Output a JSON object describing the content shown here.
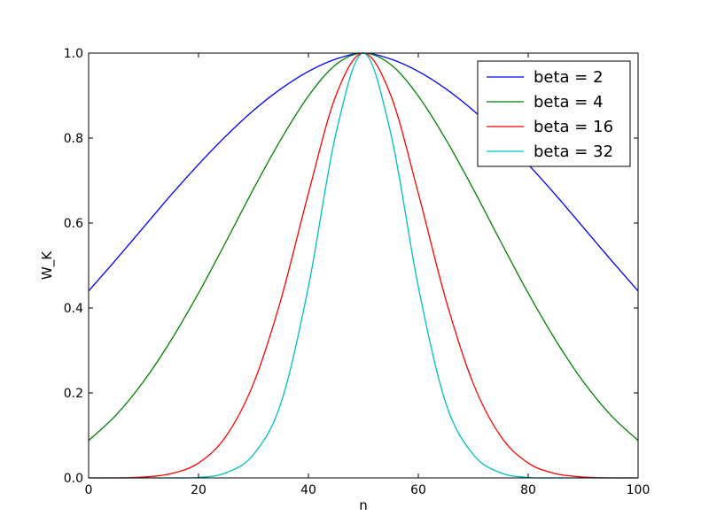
{
  "chart_data": {
    "type": "line",
    "title": "",
    "xlabel": "n",
    "ylabel": "W_K",
    "xlim": [
      0,
      100
    ],
    "ylim": [
      0.0,
      1.0
    ],
    "xticks": [
      0,
      20,
      40,
      60,
      80,
      100
    ],
    "xtick_labels": [
      "0",
      "20",
      "40",
      "60",
      "80",
      "100"
    ],
    "yticks": [
      0.0,
      0.2,
      0.4,
      0.6,
      0.8,
      1.0
    ],
    "ytick_labels": [
      "0.0",
      "0.2",
      "0.4",
      "0.6",
      "0.8",
      "1.0"
    ],
    "grid": false,
    "legend": {
      "placement": "top-right"
    },
    "x": [
      0,
      5,
      10,
      15,
      20,
      25,
      30,
      35,
      40,
      45,
      50,
      55,
      60,
      65,
      70,
      75,
      80,
      85,
      90,
      95,
      100
    ],
    "series": [
      {
        "name": "beta = 2",
        "color": "#0000ff",
        "values": [
          0.44,
          0.514,
          0.59,
          0.666,
          0.738,
          0.805,
          0.865,
          0.916,
          0.957,
          0.986,
          1.0,
          0.986,
          0.957,
          0.916,
          0.865,
          0.805,
          0.738,
          0.666,
          0.59,
          0.514,
          0.44
        ]
      },
      {
        "name": "beta = 4",
        "color": "#008000",
        "values": [
          0.088,
          0.148,
          0.227,
          0.324,
          0.435,
          0.556,
          0.68,
          0.797,
          0.899,
          0.973,
          1.0,
          0.973,
          0.899,
          0.797,
          0.68,
          0.556,
          0.435,
          0.324,
          0.227,
          0.148,
          0.088
        ]
      },
      {
        "name": "beta = 16",
        "color": "#ff0000",
        "values": [
          0.0,
          0.0,
          0.002,
          0.01,
          0.035,
          0.098,
          0.222,
          0.42,
          0.67,
          0.9,
          1.0,
          0.9,
          0.67,
          0.42,
          0.222,
          0.098,
          0.035,
          0.01,
          0.002,
          0.0,
          0.0
        ]
      },
      {
        "name": "beta = 32",
        "color": "#00bfbf",
        "values": [
          0.0,
          0.0,
          0.0,
          0.0,
          0.001,
          0.012,
          0.055,
          0.176,
          0.45,
          0.81,
          1.0,
          0.81,
          0.45,
          0.176,
          0.055,
          0.012,
          0.001,
          0.0,
          0.0,
          0.0,
          0.0
        ]
      }
    ]
  }
}
